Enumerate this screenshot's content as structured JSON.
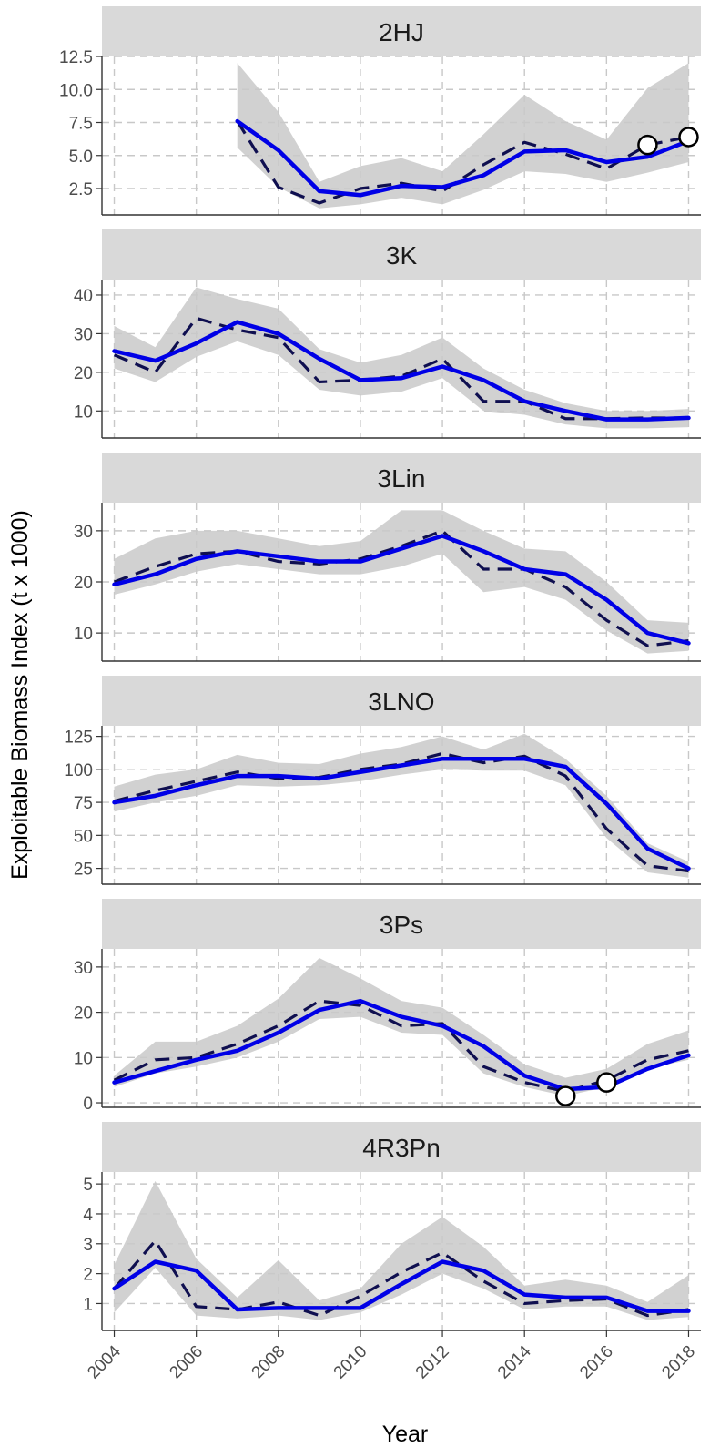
{
  "chart_data": {
    "type": "line",
    "xlabel": "Year",
    "ylabel": "Exploitable Biomass Index (t x 1000)",
    "x_ticks": [
      2004,
      2006,
      2008,
      2010,
      2012,
      2014,
      2016,
      2018
    ],
    "xlim": [
      2003.7,
      2018.3
    ],
    "grid": true,
    "legend": "none",
    "panels": [
      {
        "name": "2HJ",
        "ylim": [
          0.5,
          12.5
        ],
        "y_ticks": [
          2.5,
          5.0,
          7.5,
          10.0,
          12.5
        ],
        "y_tick_labels": [
          "2.5",
          "5.0",
          "7.5",
          "10.0",
          "12.5"
        ],
        "x": [
          2007,
          2008,
          2009,
          2010,
          2011,
          2012,
          2013,
          2014,
          2015,
          2016,
          2017,
          2018
        ],
        "solid": [
          7.6,
          5.4,
          2.3,
          2.0,
          2.7,
          2.6,
          3.5,
          5.3,
          5.4,
          4.5,
          4.9,
          6.1
        ],
        "dashed": [
          7.6,
          2.6,
          1.4,
          2.5,
          2.9,
          2.3,
          4.3,
          6.0,
          5.1,
          4.0,
          5.8,
          6.4
        ],
        "ribbon_lower": [
          5.6,
          2.6,
          1.0,
          1.3,
          1.8,
          1.3,
          2.4,
          3.8,
          3.6,
          3.0,
          3.7,
          4.5
        ],
        "ribbon_upper": [
          12.0,
          8.3,
          3.0,
          4.2,
          4.8,
          3.8,
          6.6,
          9.6,
          7.6,
          6.2,
          10.1,
          12.0
        ],
        "points": [
          {
            "x": 2017,
            "y": 5.8
          },
          {
            "x": 2018,
            "y": 6.4
          }
        ]
      },
      {
        "name": "3K",
        "ylim": [
          3,
          44
        ],
        "y_ticks": [
          10,
          20,
          30,
          40
        ],
        "y_tick_labels": [
          "10",
          "20",
          "30",
          "40"
        ],
        "x": [
          2004,
          2005,
          2006,
          2007,
          2008,
          2009,
          2010,
          2011,
          2012,
          2013,
          2014,
          2015,
          2016,
          2017,
          2018
        ],
        "solid": [
          25.5,
          23.0,
          27.5,
          33.0,
          30.0,
          23.5,
          18.0,
          18.5,
          21.5,
          18.0,
          12.5,
          10.0,
          7.8,
          7.8,
          8.2
        ],
        "dashed": [
          24.5,
          20.0,
          34.0,
          31.0,
          29.0,
          17.5,
          18.0,
          19.0,
          23.5,
          12.5,
          12.5,
          8.0,
          8.0,
          8.2,
          8.2
        ],
        "ribbon_lower": [
          21.0,
          17.5,
          24.0,
          28.0,
          24.5,
          15.5,
          14.0,
          15.0,
          18.5,
          10.0,
          9.0,
          6.5,
          5.5,
          5.5,
          5.8
        ],
        "ribbon_upper": [
          32.0,
          26.5,
          42.0,
          39.0,
          36.5,
          26.0,
          22.5,
          24.5,
          29.0,
          21.0,
          15.5,
          12.0,
          10.0,
          10.0,
          10.5
        ],
        "points": []
      },
      {
        "name": "3Lin",
        "ylim": [
          4.5,
          35.5
        ],
        "y_ticks": [
          10,
          20,
          30
        ],
        "y_tick_labels": [
          "10",
          "20",
          "30"
        ],
        "x": [
          2004,
          2005,
          2006,
          2007,
          2008,
          2009,
          2010,
          2011,
          2012,
          2013,
          2014,
          2015,
          2016,
          2017,
          2018
        ],
        "solid": [
          19.5,
          21.5,
          24.5,
          26.0,
          25.0,
          24.0,
          24.0,
          26.5,
          29.0,
          26.0,
          22.5,
          21.5,
          16.5,
          10.0,
          8.0
        ],
        "dashed": [
          20.0,
          23.0,
          25.5,
          26.0,
          24.0,
          23.5,
          24.5,
          27.0,
          30.0,
          22.5,
          22.5,
          19.0,
          12.5,
          7.5,
          8.5
        ],
        "ribbon_lower": [
          17.5,
          19.5,
          22.0,
          23.5,
          22.5,
          21.5,
          21.5,
          23.0,
          25.5,
          18.0,
          19.0,
          16.5,
          10.5,
          6.0,
          6.5
        ],
        "ribbon_upper": [
          24.5,
          28.5,
          30.0,
          30.0,
          28.5,
          27.0,
          28.0,
          34.0,
          34.0,
          30.0,
          26.5,
          26.0,
          20.0,
          12.5,
          12.0
        ],
        "points": []
      },
      {
        "name": "3LNO",
        "ylim": [
          13,
          133
        ],
        "y_ticks": [
          25,
          50,
          75,
          100,
          125
        ],
        "y_tick_labels": [
          "25",
          "50",
          "75",
          "100",
          "125"
        ],
        "x": [
          2004,
          2005,
          2006,
          2007,
          2008,
          2009,
          2010,
          2011,
          2012,
          2013,
          2014,
          2015,
          2016,
          2017,
          2018
        ],
        "solid": [
          75,
          80,
          88,
          95,
          95,
          93,
          98,
          103,
          108,
          108,
          108,
          102,
          74,
          40,
          25
        ],
        "dashed": [
          76,
          84,
          91,
          98,
          93,
          94,
          100,
          104,
          112,
          105,
          110,
          95,
          55,
          27,
          23
        ],
        "ribbon_lower": [
          68,
          75,
          80,
          88,
          87,
          88,
          91,
          96,
          100,
          99,
          99,
          88,
          48,
          22,
          18
        ],
        "ribbon_upper": [
          87,
          96,
          100,
          111,
          105,
          104,
          112,
          117,
          125,
          115,
          127,
          108,
          80,
          44,
          30
        ],
        "points": []
      },
      {
        "name": "3Ps",
        "ylim": [
          -1,
          34
        ],
        "y_ticks": [
          0,
          10,
          20,
          30
        ],
        "y_tick_labels": [
          "0",
          "10",
          "20",
          "30"
        ],
        "x": [
          2004,
          2005,
          2006,
          2007,
          2008,
          2009,
          2010,
          2011,
          2012,
          2013,
          2014,
          2015,
          2016,
          2017,
          2018
        ],
        "solid": [
          4.5,
          7.0,
          9.5,
          11.5,
          15.5,
          20.5,
          22.5,
          19.0,
          17.0,
          12.5,
          6.0,
          3.0,
          3.5,
          7.5,
          10.5
        ],
        "dashed": [
          5.0,
          9.5,
          10.0,
          13.0,
          17.0,
          22.5,
          21.5,
          17.0,
          17.5,
          8.0,
          4.5,
          2.5,
          5.0,
          9.5,
          11.5
        ],
        "ribbon_lower": [
          3.5,
          6.5,
          8.0,
          10.0,
          13.5,
          18.5,
          19.0,
          15.5,
          15.0,
          6.5,
          3.5,
          1.5,
          3.5,
          7.5,
          9.5
        ],
        "ribbon_upper": [
          6.0,
          13.5,
          13.5,
          17.0,
          23.0,
          32.0,
          27.5,
          22.5,
          21.0,
          15.0,
          8.5,
          5.5,
          7.5,
          13.0,
          16.0
        ],
        "points": [
          {
            "x": 2015,
            "y": 1.5
          },
          {
            "x": 2016,
            "y": 4.5
          }
        ]
      },
      {
        "name": "4R3Pn",
        "ylim": [
          0.1,
          5.4
        ],
        "y_ticks": [
          1,
          2,
          3,
          4,
          5
        ],
        "y_tick_labels": [
          "1",
          "2",
          "3",
          "4",
          "5"
        ],
        "x": [
          2004,
          2005,
          2006,
          2007,
          2008,
          2009,
          2010,
          2011,
          2012,
          2013,
          2014,
          2015,
          2016,
          2017,
          2018
        ],
        "solid": [
          1.5,
          2.4,
          2.1,
          0.8,
          0.85,
          0.85,
          0.85,
          1.65,
          2.4,
          2.1,
          1.3,
          1.2,
          1.2,
          0.75,
          0.75
        ],
        "dashed": [
          1.5,
          3.1,
          0.9,
          0.8,
          1.05,
          0.6,
          1.25,
          2.05,
          2.7,
          1.75,
          1.0,
          1.1,
          1.15,
          0.6,
          0.8
        ],
        "ribbon_lower": [
          0.7,
          2.2,
          0.6,
          0.5,
          0.6,
          0.45,
          0.7,
          1.3,
          2.0,
          1.5,
          0.8,
          0.9,
          0.9,
          0.45,
          0.55
        ],
        "ribbon_upper": [
          2.3,
          5.1,
          2.5,
          1.2,
          2.45,
          1.1,
          1.5,
          3.0,
          3.9,
          2.9,
          1.6,
          1.8,
          1.6,
          1.05,
          1.95
        ],
        "points": []
      }
    ]
  },
  "colors": {
    "strip_background": "#d9d9d9",
    "grid": "#c8c8c8",
    "ribbon": "#c9c9c9",
    "solid_line": "#0000e6",
    "dashed_line": "#0f0f50",
    "point_fill": "#ffffff",
    "point_stroke": "#000000"
  }
}
